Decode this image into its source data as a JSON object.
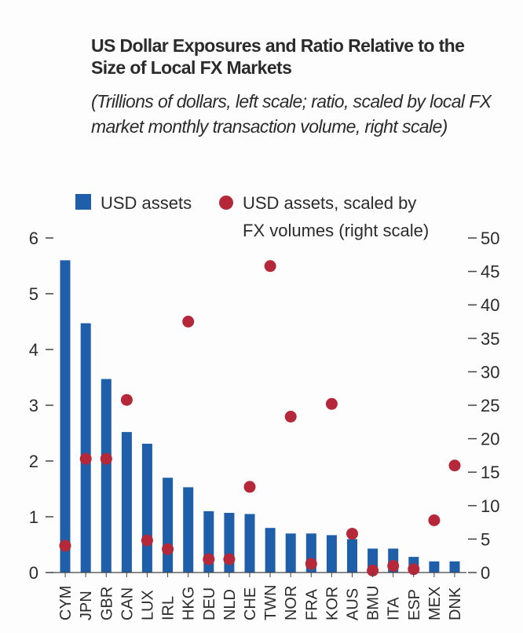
{
  "chart_data": {
    "type": "bar",
    "title": "US Dollar Exposures and Ratio Relative to the Size of Local FX Markets",
    "subtitle": "(Trillions of dollars, left scale; ratio, scaled by local FX market monthly transaction volume, right scale)",
    "categories": [
      "CYM",
      "JPN",
      "GBR",
      "CAN",
      "LUX",
      "IRL",
      "HKG",
      "DEU",
      "NLD",
      "CHE",
      "TWN",
      "NOR",
      "FRA",
      "KOR",
      "AUS",
      "BMU",
      "ITA",
      "ESP",
      "MEX",
      "DNK"
    ],
    "series": [
      {
        "name": "USD assets",
        "axis": "left",
        "mark": "bar",
        "color": "#1f5fa9",
        "values": [
          5.6,
          4.47,
          3.47,
          2.52,
          2.31,
          1.7,
          1.53,
          1.1,
          1.07,
          1.05,
          0.8,
          0.7,
          0.7,
          0.67,
          0.6,
          0.43,
          0.43,
          0.28,
          0.2,
          0.2
        ]
      },
      {
        "name": "USD assets, scaled by FX volumes (right scale)",
        "axis": "right",
        "mark": "dot",
        "color": "#b5283a",
        "values": [
          4,
          17,
          17,
          25.8,
          4.8,
          3.5,
          37.5,
          2,
          2,
          12.8,
          45.8,
          23.3,
          1.3,
          25.2,
          5.8,
          0.3,
          1,
          0.5,
          7.8,
          16
        ]
      }
    ],
    "y_left": {
      "range": [
        0,
        6
      ],
      "ticks": [
        "0",
        "1",
        "2",
        "3",
        "4",
        "5",
        "6"
      ]
    },
    "y_right": {
      "range": [
        0,
        50
      ],
      "ticks": [
        "0",
        "5",
        "10",
        "15",
        "20",
        "25",
        "30",
        "35",
        "40",
        "45",
        "50"
      ]
    },
    "legend": {
      "placement": "top",
      "items": [
        "USD assets",
        "USD assets, scaled by FX volumes (right scale)"
      ]
    }
  }
}
